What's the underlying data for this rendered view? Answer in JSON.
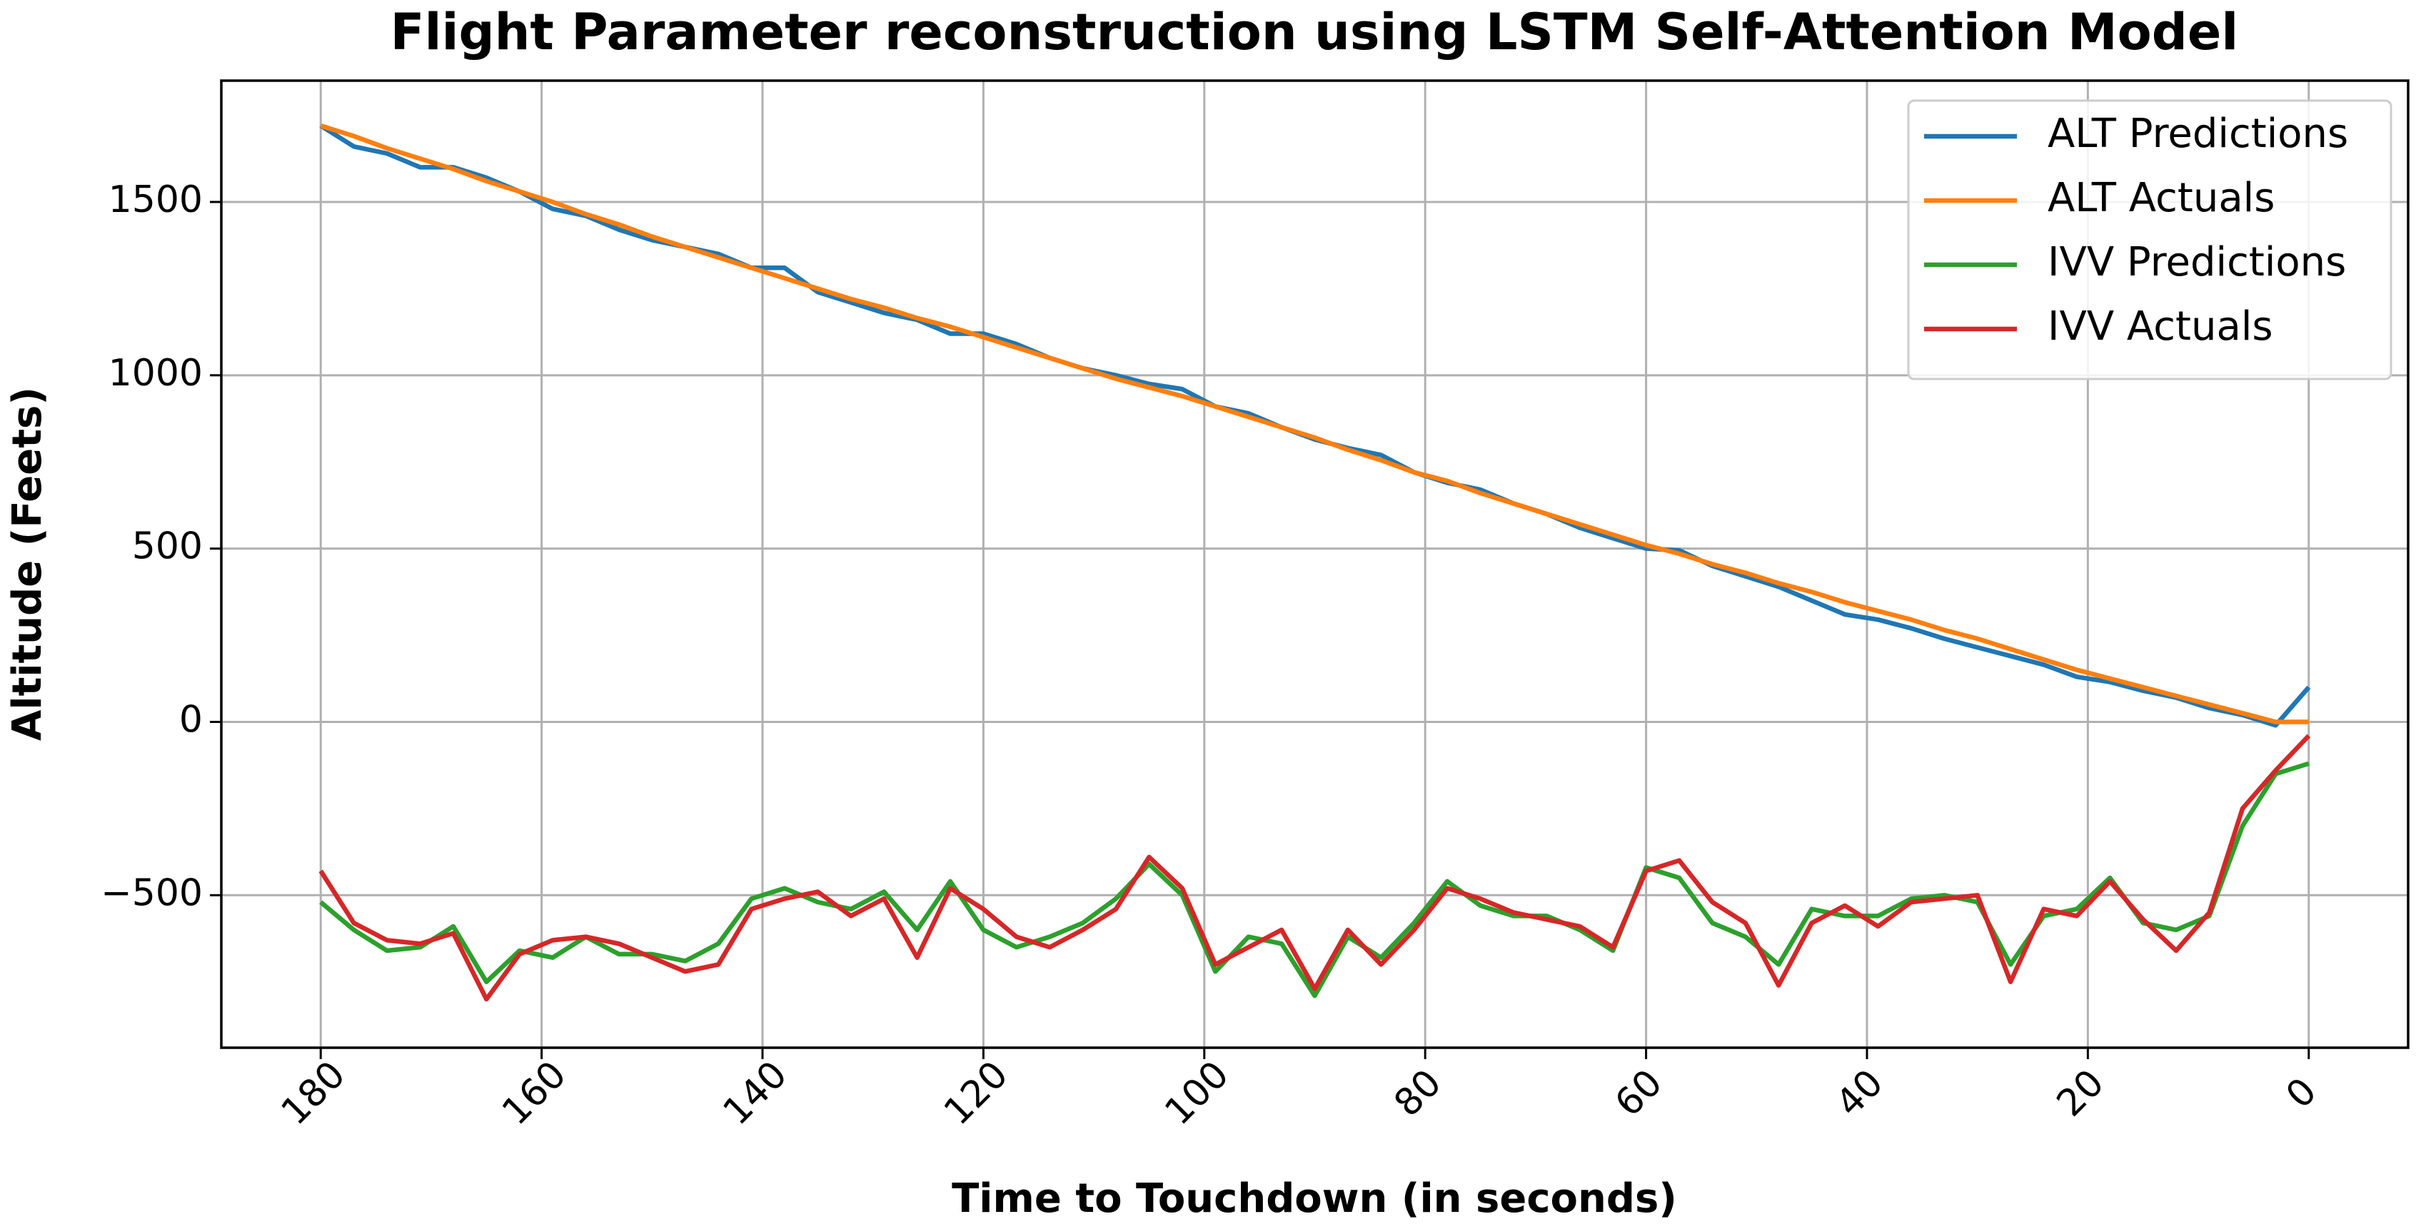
{
  "chart_data": {
    "type": "line",
    "title": "Flight Parameter reconstruction using LSTM Self-Attention Model",
    "xlabel": "Time to Touchdown (in seconds)",
    "ylabel": "Altitude (Feets)",
    "x": [
      180,
      177,
      174,
      171,
      168,
      165,
      162,
      159,
      156,
      153,
      150,
      147,
      144,
      141,
      138,
      135,
      132,
      129,
      126,
      123,
      120,
      117,
      114,
      111,
      108,
      105,
      102,
      99,
      96,
      93,
      90,
      87,
      84,
      81,
      78,
      75,
      72,
      69,
      66,
      63,
      60,
      57,
      54,
      51,
      48,
      45,
      42,
      39,
      36,
      33,
      30,
      27,
      24,
      21,
      18,
      15,
      12,
      9,
      6,
      3,
      0
    ],
    "series": [
      {
        "name": "ALT Predictions",
        "color": "#1f77b4",
        "values": [
          1720,
          1660,
          1640,
          1600,
          1600,
          1570,
          1530,
          1480,
          1460,
          1420,
          1390,
          1370,
          1350,
          1310,
          1310,
          1240,
          1210,
          1180,
          1160,
          1120,
          1120,
          1090,
          1050,
          1020,
          1000,
          975,
          960,
          910,
          890,
          850,
          815,
          790,
          770,
          720,
          690,
          670,
          630,
          600,
          560,
          530,
          500,
          495,
          450,
          420,
          390,
          350,
          310,
          295,
          270,
          240,
          215,
          190,
          165,
          130,
          115,
          90,
          70,
          40,
          20,
          -10,
          100
        ]
      },
      {
        "name": "ALT Actuals",
        "color": "#ff7f0e",
        "values": [
          1720,
          1690,
          1655,
          1625,
          1595,
          1560,
          1530,
          1500,
          1465,
          1435,
          1400,
          1370,
          1340,
          1310,
          1280,
          1250,
          1220,
          1195,
          1165,
          1140,
          1110,
          1080,
          1050,
          1020,
          990,
          965,
          940,
          910,
          880,
          850,
          820,
          785,
          755,
          720,
          695,
          660,
          630,
          600,
          570,
          540,
          510,
          485,
          455,
          430,
          400,
          375,
          345,
          320,
          295,
          265,
          240,
          210,
          180,
          150,
          125,
          100,
          75,
          50,
          25,
          0,
          0
        ]
      },
      {
        "name": "IVV Predictions",
        "color": "#2ca02c",
        "values": [
          -520,
          -600,
          -660,
          -650,
          -590,
          -750,
          -660,
          -680,
          -620,
          -670,
          -670,
          -690,
          -640,
          -510,
          -480,
          -520,
          -540,
          -490,
          -600,
          -460,
          -600,
          -650,
          -620,
          -580,
          -510,
          -410,
          -500,
          -720,
          -620,
          -640,
          -790,
          -620,
          -680,
          -580,
          -460,
          -530,
          -560,
          -560,
          -600,
          -660,
          -420,
          -450,
          -580,
          -620,
          -700,
          -540,
          -560,
          -560,
          -510,
          -500,
          -520,
          -700,
          -560,
          -540,
          -450,
          -580,
          -600,
          -560,
          -300,
          -150,
          -120
        ]
      },
      {
        "name": "IVV Actuals",
        "color": "#d62728",
        "values": [
          -430,
          -580,
          -630,
          -640,
          -610,
          -800,
          -670,
          -630,
          -620,
          -640,
          -680,
          -720,
          -700,
          -540,
          -510,
          -490,
          -560,
          -510,
          -680,
          -480,
          -540,
          -620,
          -650,
          -600,
          -540,
          -390,
          -480,
          -700,
          -650,
          -600,
          -770,
          -600,
          -700,
          -600,
          -480,
          -510,
          -550,
          -570,
          -590,
          -650,
          -430,
          -400,
          -520,
          -580,
          -760,
          -580,
          -530,
          -590,
          -520,
          -510,
          -500,
          -750,
          -540,
          -560,
          -460,
          -570,
          -660,
          -550,
          -250,
          -140,
          -40
        ]
      }
    ],
    "xlim": [
      189,
      -9
    ],
    "xticks": [
      180,
      160,
      140,
      120,
      100,
      80,
      60,
      40,
      20,
      0
    ],
    "ylim": [
      -940,
      1850
    ],
    "yticks": [
      {
        "value": -500,
        "label": "−500"
      },
      0,
      500,
      1000,
      1500
    ],
    "grid": true,
    "legend": "upper right"
  }
}
